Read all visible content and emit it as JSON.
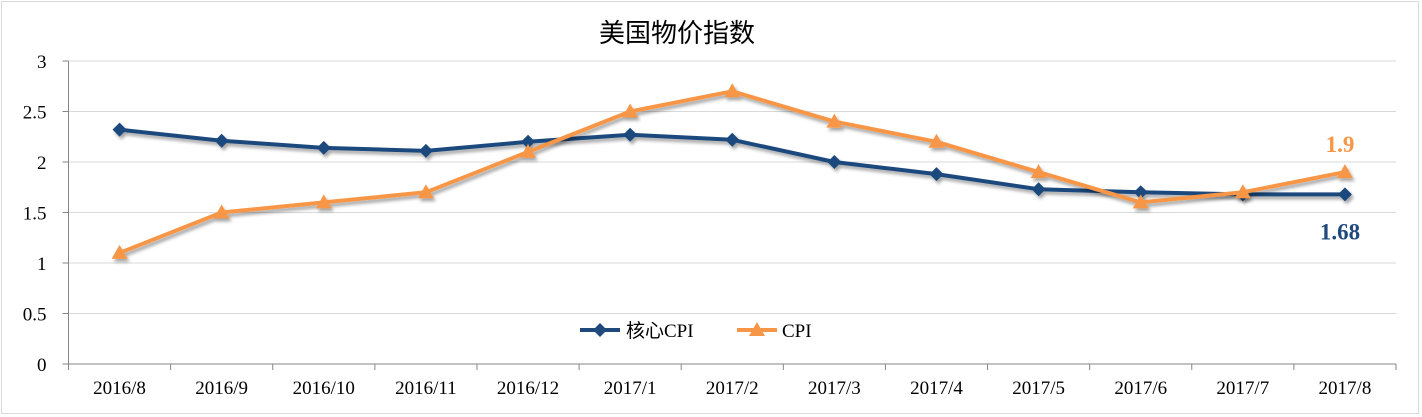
{
  "chart_data": {
    "type": "line",
    "title": "美国物价指数",
    "categories": [
      "2016/8",
      "2016/9",
      "2016/10",
      "2016/11",
      "2016/12",
      "2017/1",
      "2017/2",
      "2017/3",
      "2017/4",
      "2017/5",
      "2017/6",
      "2017/7",
      "2017/8"
    ],
    "series": [
      {
        "name": "核心CPI",
        "color": "#1f497d",
        "marker": "diamond",
        "values": [
          2.32,
          2.21,
          2.14,
          2.11,
          2.2,
          2.27,
          2.22,
          2.0,
          1.88,
          1.73,
          1.7,
          1.68,
          1.68
        ],
        "end_label": "1.68"
      },
      {
        "name": "CPI",
        "color": "#f79646",
        "marker": "triangle",
        "values": [
          1.1,
          1.5,
          1.6,
          1.7,
          2.1,
          2.5,
          2.7,
          2.4,
          2.2,
          1.9,
          1.6,
          1.7,
          1.9
        ],
        "end_label": "1.9"
      }
    ],
    "y_ticks": [
      "0",
      "0.5",
      "1",
      "1.5",
      "2",
      "2.5",
      "3"
    ],
    "ylim": [
      0,
      3
    ],
    "grid": true,
    "legend": "bottom-center inside plot"
  }
}
